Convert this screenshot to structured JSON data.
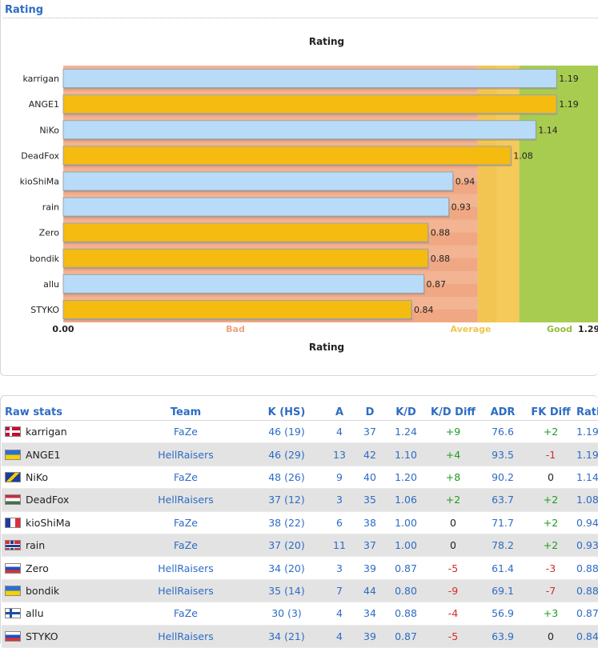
{
  "section_rating": "Rating",
  "section_raw": "Raw stats",
  "chart_data": {
    "type": "bar",
    "title": "Rating",
    "xlabel": "Rating",
    "orientation": "horizontal",
    "xlim": [
      0,
      1.29
    ],
    "axis_labels": {
      "min": "0.00",
      "max": "1.29"
    },
    "zones": [
      {
        "label": "Bad",
        "from": 0,
        "to": 1.0,
        "color": "#f0a783"
      },
      {
        "label": "Average",
        "from": 1.0,
        "to": 1.1,
        "color": "#f5c95a"
      },
      {
        "label": "Good",
        "from": 1.1,
        "to": 1.29,
        "color": "#a8cc50"
      }
    ],
    "categories": [
      "karrigan",
      "ANGE1",
      "NiKo",
      "DeadFox",
      "kioShiMa",
      "rain",
      "Zero",
      "bondik",
      "allu",
      "STYKO"
    ],
    "values": [
      1.19,
      1.19,
      1.14,
      1.08,
      0.94,
      0.93,
      0.88,
      0.88,
      0.87,
      0.84
    ],
    "value_labels": [
      "1.19",
      "1.19",
      "1.14",
      "1.08",
      "0.94",
      "0.93",
      "0.88",
      "0.88",
      "0.87",
      "0.84"
    ],
    "bar_team": [
      "FaZe",
      "HellRaisers",
      "FaZe",
      "HellRaisers",
      "FaZe",
      "FaZe",
      "HellRaisers",
      "HellRaisers",
      "FaZe",
      "HellRaisers"
    ],
    "team_colors": {
      "FaZe": "#b8dcf8",
      "HellRaisers": "#f5bb10"
    }
  },
  "table": {
    "headers": {
      "player": "Raw stats",
      "team": "Team",
      "k_hs": "K (HS)",
      "a": "A",
      "d": "D",
      "kd": "K/D",
      "kd_diff": "K/D Diff",
      "adr": "ADR",
      "fk_diff": "FK Diff",
      "rating": "Rating"
    },
    "rows": [
      {
        "flag": "dk",
        "player": "karrigan",
        "team": "FaZe",
        "k_hs": "46 (19)",
        "a": "4",
        "d": "37",
        "kd": "1.24",
        "kd_diff": "+9",
        "adr": "76.6",
        "fk_diff": "+2",
        "rating": "1.19"
      },
      {
        "flag": "ua",
        "player": "ANGE1",
        "team": "HellRaisers",
        "k_hs": "46 (29)",
        "a": "13",
        "d": "42",
        "kd": "1.10",
        "kd_diff": "+4",
        "adr": "93.5",
        "fk_diff": "-1",
        "rating": "1.19"
      },
      {
        "flag": "ba",
        "player": "NiKo",
        "team": "FaZe",
        "k_hs": "48 (26)",
        "a": "9",
        "d": "40",
        "kd": "1.20",
        "kd_diff": "+8",
        "adr": "90.2",
        "fk_diff": "0",
        "rating": "1.14"
      },
      {
        "flag": "hu",
        "player": "DeadFox",
        "team": "HellRaisers",
        "k_hs": "37 (12)",
        "a": "3",
        "d": "35",
        "kd": "1.06",
        "kd_diff": "+2",
        "adr": "63.7",
        "fk_diff": "+2",
        "rating": "1.08"
      },
      {
        "flag": "fr",
        "player": "kioShiMa",
        "team": "FaZe",
        "k_hs": "38 (22)",
        "a": "6",
        "d": "38",
        "kd": "1.00",
        "kd_diff": "0",
        "adr": "71.7",
        "fk_diff": "+2",
        "rating": "0.94"
      },
      {
        "flag": "no",
        "player": "rain",
        "team": "FaZe",
        "k_hs": "37 (20)",
        "a": "11",
        "d": "37",
        "kd": "1.00",
        "kd_diff": "0",
        "adr": "78.2",
        "fk_diff": "+2",
        "rating": "0.93"
      },
      {
        "flag": "sk",
        "player": "Zero",
        "team": "HellRaisers",
        "k_hs": "34 (20)",
        "a": "3",
        "d": "39",
        "kd": "0.87",
        "kd_diff": "-5",
        "adr": "61.4",
        "fk_diff": "-3",
        "rating": "0.88"
      },
      {
        "flag": "ua",
        "player": "bondik",
        "team": "HellRaisers",
        "k_hs": "35 (14)",
        "a": "7",
        "d": "44",
        "kd": "0.80",
        "kd_diff": "-9",
        "adr": "69.1",
        "fk_diff": "-7",
        "rating": "0.88"
      },
      {
        "flag": "fi",
        "player": "allu",
        "team": "FaZe",
        "k_hs": "30 (3)",
        "a": "4",
        "d": "34",
        "kd": "0.88",
        "kd_diff": "-4",
        "adr": "56.9",
        "fk_diff": "+3",
        "rating": "0.87"
      },
      {
        "flag": "sk",
        "player": "STYKO",
        "team": "HellRaisers",
        "k_hs": "34 (21)",
        "a": "4",
        "d": "39",
        "kd": "0.87",
        "kd_diff": "-5",
        "adr": "63.9",
        "fk_diff": "0",
        "rating": "0.84"
      }
    ]
  }
}
